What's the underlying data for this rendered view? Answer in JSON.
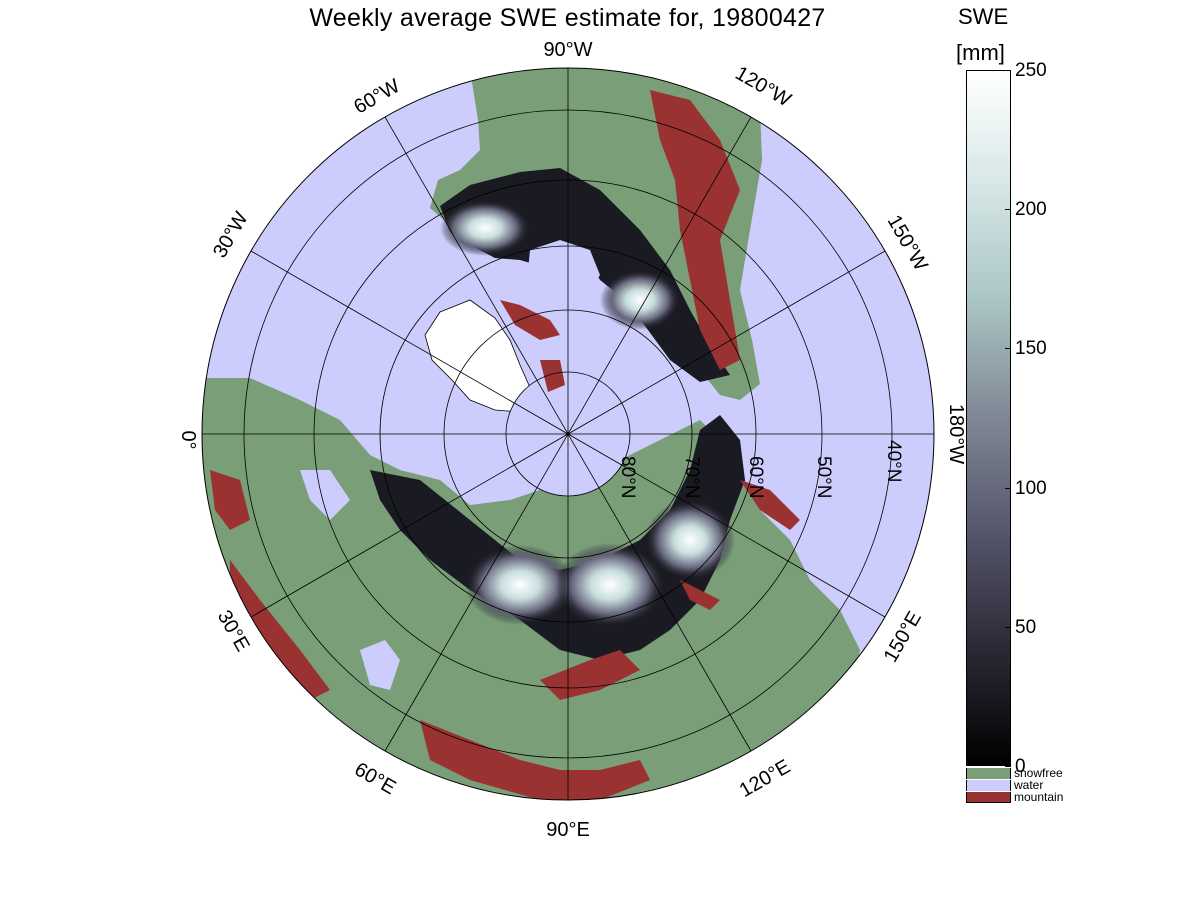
{
  "title": "Weekly average SWE estimate for, 19800427",
  "colorbar": {
    "unit_line1": "SWE",
    "unit_line2": "[mm]",
    "ticks": [
      "250",
      "200",
      "150",
      "100",
      "50",
      "0"
    ],
    "tick_values": [
      250,
      200,
      150,
      100,
      50,
      0
    ],
    "range": [
      0,
      250
    ],
    "gradient_colors": [
      "#000000",
      "#2a2a36",
      "#55556a",
      "#7f8794",
      "#a9c4c4",
      "#d6e6e6",
      "#ffffff"
    ],
    "categories": [
      {
        "label": "snowfree",
        "color": "#7a9e78"
      },
      {
        "label": "water",
        "color": "#cccdfc"
      },
      {
        "label": "mountain",
        "color": "#9a3232"
      }
    ]
  },
  "map": {
    "projection": "north polar stereographic",
    "ocean_color": "#cccdfc",
    "land_color": "#7a9e78",
    "mountain_color": "#9a3232",
    "longitude_labels": [
      {
        "key": "lon90w",
        "text": "90°W"
      },
      {
        "key": "lon120w",
        "text": "120°W"
      },
      {
        "key": "lon150w",
        "text": "150°W"
      },
      {
        "key": "lon180w",
        "text": "180°W"
      },
      {
        "key": "lon150e",
        "text": "150°E"
      },
      {
        "key": "lon120e",
        "text": "120°E"
      },
      {
        "key": "lon90e",
        "text": "90°E"
      },
      {
        "key": "lon60e",
        "text": "60°E"
      },
      {
        "key": "lon30e",
        "text": "30°E"
      },
      {
        "key": "lon0",
        "text": "0°"
      },
      {
        "key": "lon30w",
        "text": "30°W"
      },
      {
        "key": "lon60w",
        "text": "60°W"
      }
    ],
    "latitude_labels": [
      {
        "key": "lat80",
        "text": "80°N"
      },
      {
        "key": "lat70",
        "text": "70°N"
      },
      {
        "key": "lat60",
        "text": "60°N"
      },
      {
        "key": "lat50",
        "text": "50°N"
      },
      {
        "key": "lat40",
        "text": "40°N"
      }
    ]
  }
}
